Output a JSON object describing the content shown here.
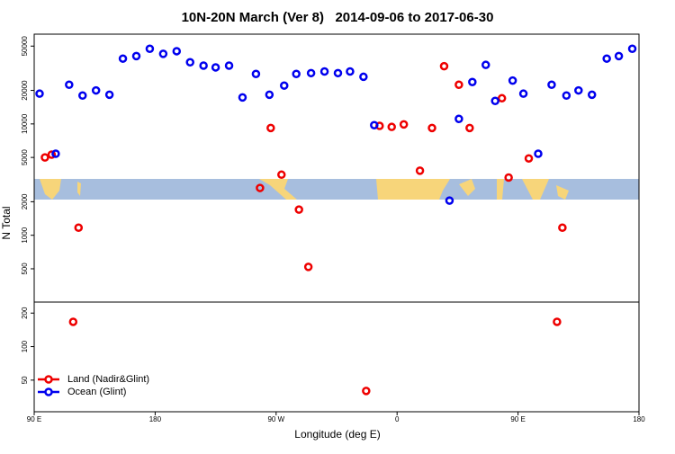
{
  "chart_data": {
    "type": "scatter",
    "title": "10N-20N March (Ver 8)   2014-09-06 to 2017-06-30",
    "x_label": "Longitude (deg E)",
    "y_label": "N Total",
    "log_y": true,
    "legend": "bottom-left",
    "xlim": [
      90,
      540
    ],
    "ylim": [
      26,
      64000
    ],
    "xticks": [
      {
        "value": 90,
        "label": "90 E"
      },
      180,
      {
        "value": 270,
        "label": "90 W"
      },
      {
        "value": 360,
        "label": "0"
      },
      {
        "value": 450,
        "label": "90 E"
      },
      {
        "value": 540,
        "label": "180"
      }
    ],
    "yticks": [
      50,
      100,
      200,
      500,
      1000,
      2000,
      5000,
      10000,
      20000,
      50000
    ],
    "series": [
      {
        "name": "Land (Nadir&Glint)",
        "color": "#ee0000",
        "x": [
          98,
          103,
          123,
          119,
          258,
          266,
          274,
          287,
          294,
          337,
          347,
          356,
          365,
          377,
          386,
          395,
          406,
          414,
          438,
          443,
          458,
          479,
          483
        ],
        "values": [
          5000,
          5300,
          1170,
          167,
          2660,
          9200,
          3500,
          1700,
          520,
          40,
          9600,
          9400,
          9900,
          3800,
          9200,
          33000,
          22500,
          9200,
          17000,
          3300,
          4900,
          167,
          1170
        ]
      },
      {
        "name": "Ocean (Glint)",
        "color": "#0000ee",
        "x": [
          94,
          106,
          116,
          126,
          136,
          146,
          156,
          166,
          176,
          186,
          196,
          206,
          216,
          225,
          235,
          245,
          255,
          265,
          276,
          285,
          296,
          306,
          316,
          325,
          335,
          343,
          399,
          406,
          416,
          426,
          433,
          446,
          454,
          465,
          475,
          486,
          495,
          505,
          516,
          525,
          535
        ],
        "values": [
          18700,
          5400,
          22500,
          18000,
          20000,
          18300,
          38600,
          40700,
          47300,
          42600,
          45000,
          35800,
          33400,
          32200,
          33400,
          17300,
          28100,
          18300,
          22100,
          28100,
          28600,
          29600,
          28600,
          29600,
          26500,
          9750,
          2050,
          11100,
          23800,
          33900,
          16100,
          24500,
          18700,
          5400,
          22500,
          18000,
          20000,
          18300,
          38600,
          40700,
          47300
        ]
      }
    ]
  }
}
